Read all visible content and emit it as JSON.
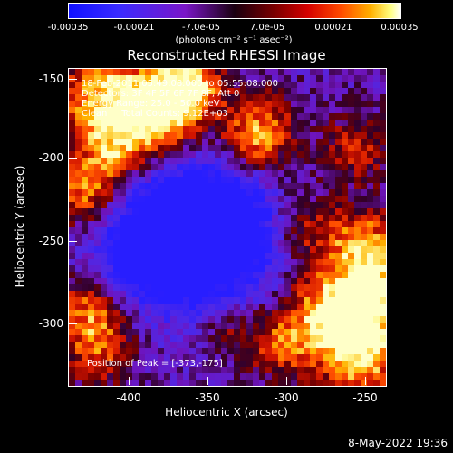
{
  "colorbar": {
    "ticks": [
      "-0.00035",
      "-0.00021",
      "-7.0e-05",
      "7.0e-05",
      "0.00021",
      "0.00035"
    ],
    "unit": "(photons cm⁻² s⁻¹ asec⁻²)"
  },
  "title": "Reconstructed RHESSI Image",
  "overlay": {
    "line1": "18-Feb-2011 05:49:08.000 to 05:55:08.000",
    "line2": "Detectors: 3F 4F 5F 6F 7F 8F, Att 0",
    "line3": "Energy Range: 25.0 - 50.0 keV",
    "line4": "Clean     Total Counts: 9.12E+03",
    "peak": "Position of Peak = [-373,-175]"
  },
  "axes": {
    "xlabel": "Heliocentric X (arcsec)",
    "ylabel": "Heliocentric Y (arcsec)",
    "xticks": [
      "-400",
      "-350",
      "-300",
      "-250"
    ],
    "yticks": [
      "-150",
      "-200",
      "-250",
      "-300"
    ]
  },
  "timestamp": "8-May-2022 19:36",
  "colors": {
    "background": "#000000",
    "foreground": "#ffffff"
  }
}
